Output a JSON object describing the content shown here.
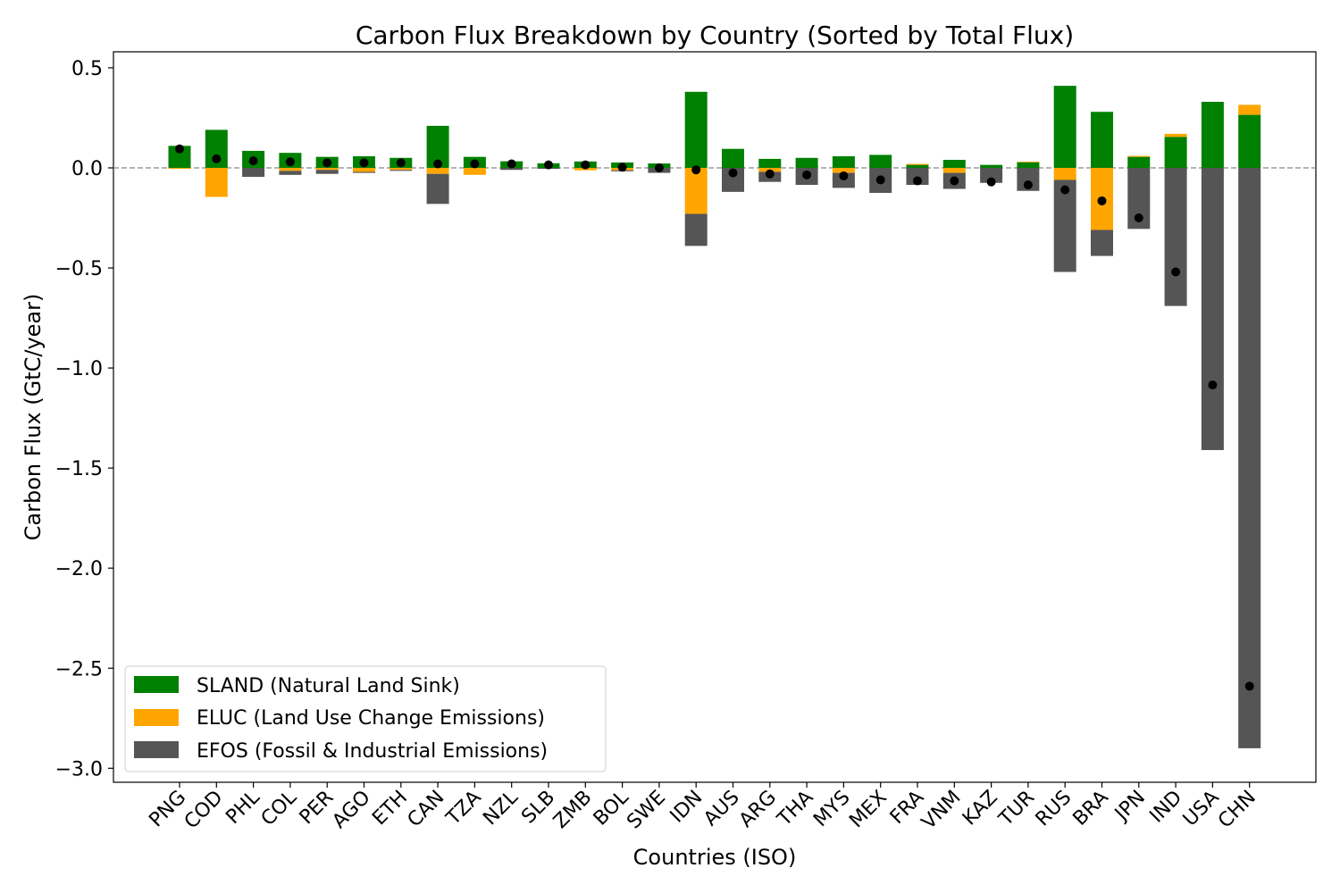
{
  "chart_data": {
    "type": "bar",
    "stacked": true,
    "title": "Carbon Flux Breakdown by Country (Sorted by Total Flux)",
    "xlabel": "Countries (ISO)",
    "ylabel": "Carbon Flux (GtC/year)",
    "ylim": [
      -3.07,
      0.58
    ],
    "yticks": [
      0.5,
      0.0,
      -0.5,
      -1.0,
      -1.5,
      -2.0,
      -2.5,
      -3.0
    ],
    "ytick_labels": [
      "0.5",
      "0.0",
      "−0.5",
      "−1.0",
      "−1.5",
      "−2.0",
      "−2.5",
      "−3.0"
    ],
    "grid": false,
    "zero_line": true,
    "legend_position": "lower-left",
    "categories": [
      "PNG",
      "COD",
      "PHL",
      "COL",
      "PER",
      "AGO",
      "ETH",
      "CAN",
      "TZA",
      "NZL",
      "SLB",
      "ZMB",
      "BOL",
      "SWE",
      "IDN",
      "AUS",
      "ARG",
      "THA",
      "MYS",
      "MEX",
      "FRA",
      "VNM",
      "KAZ",
      "TUR",
      "RUS",
      "BRA",
      "JPN",
      "IND",
      "USA",
      "CHN"
    ],
    "series": [
      {
        "name": "SLAND (Natural Land Sink)",
        "color": "#008000",
        "values": [
          0.11,
          0.19,
          0.085,
          0.075,
          0.055,
          0.058,
          0.05,
          0.21,
          0.055,
          0.033,
          0.023,
          0.032,
          0.027,
          0.022,
          0.38,
          0.095,
          0.045,
          0.05,
          0.058,
          0.065,
          0.015,
          0.04,
          0.015,
          0.028,
          0.41,
          0.28,
          0.055,
          0.155,
          0.33,
          0.265
        ]
      },
      {
        "name": "ELUC (Land Use Change Emissions)",
        "color": "#FFA500",
        "values": [
          -0.005,
          -0.145,
          0.0,
          -0.015,
          -0.01,
          -0.02,
          -0.01,
          -0.03,
          -0.035,
          0.0,
          0.0,
          -0.012,
          -0.012,
          0.0,
          -0.23,
          0.0,
          -0.02,
          0.0,
          -0.025,
          0.0,
          0.005,
          -0.025,
          0.0,
          0.003,
          -0.06,
          -0.31,
          0.005,
          0.015,
          0.0,
          0.05
        ]
      },
      {
        "name": "EFOS (Fossil & Industrial Emissions)",
        "color": "#555555",
        "values": [
          0.0,
          0.0,
          -0.045,
          -0.02,
          -0.02,
          -0.005,
          -0.005,
          -0.15,
          0.0,
          -0.01,
          -0.005,
          0.0,
          -0.005,
          -0.025,
          -0.16,
          -0.12,
          -0.05,
          -0.085,
          -0.075,
          -0.125,
          -0.085,
          -0.08,
          -0.075,
          -0.115,
          -0.46,
          -0.13,
          -0.305,
          -0.69,
          -1.41,
          -2.9
        ]
      }
    ],
    "total_marker": {
      "color": "#000000",
      "values": [
        0.095,
        0.045,
        0.035,
        0.03,
        0.025,
        0.025,
        0.025,
        0.02,
        0.02,
        0.02,
        0.015,
        0.015,
        0.003,
        0.0,
        -0.01,
        -0.025,
        -0.03,
        -0.035,
        -0.04,
        -0.06,
        -0.065,
        -0.065,
        -0.07,
        -0.085,
        -0.11,
        -0.165,
        -0.25,
        -0.52,
        -1.085,
        -2.59
      ]
    }
  }
}
